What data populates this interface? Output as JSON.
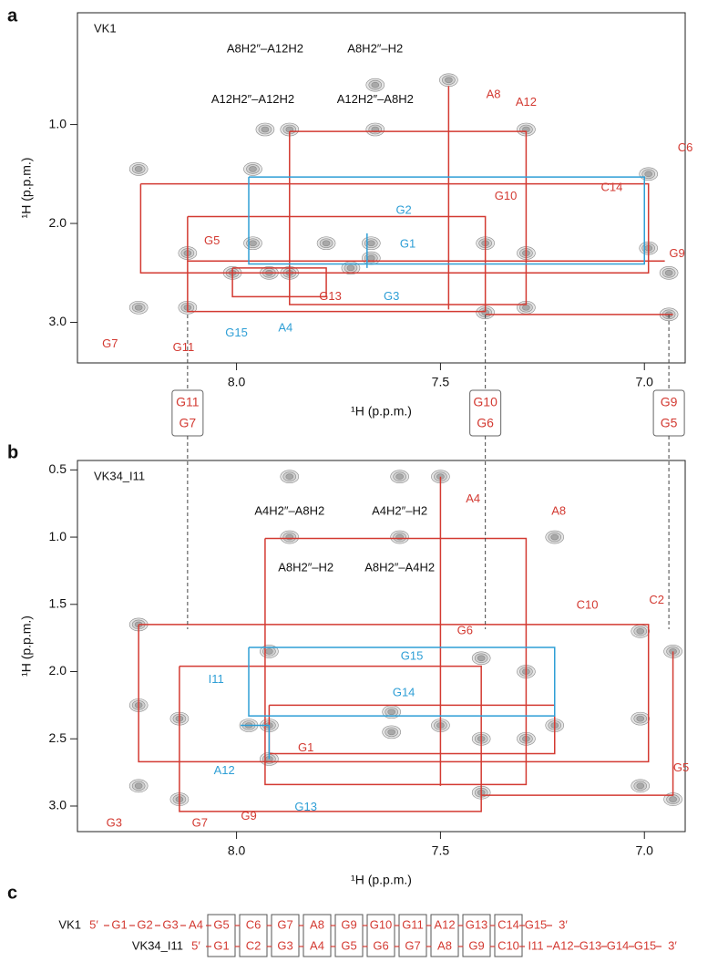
{
  "chart_data": [
    {
      "type": "contour",
      "panel": "a",
      "sample": "VK1",
      "xlabel": "¹H (p.p.m.)",
      "ylabel": "¹H (p.p.m.)",
      "xlim": [
        8.39,
        6.9
      ],
      "ylim": [
        -0.13,
        3.41
      ],
      "xticks": [
        {
          "value": 8,
          "label": "8.0"
        },
        7.5,
        {
          "value": 7,
          "label": "7.0"
        }
      ],
      "yticks": [
        {
          "value": 1,
          "label": "1.0"
        },
        {
          "value": 2,
          "label": "2.0"
        },
        {
          "value": 3,
          "label": "3.0"
        }
      ],
      "peaks": {
        "x": [
          8.24,
          8.24,
          8.12,
          8.12,
          8.01,
          7.96,
          7.96,
          7.92,
          7.87,
          7.87,
          7.78,
          7.72,
          7.67,
          7.67,
          7.48,
          7.39,
          7.39,
          7.29,
          7.29,
          7.29,
          6.99,
          6.99,
          6.94,
          6.94,
          7.66,
          7.66,
          7.93
        ],
        "y": [
          1.45,
          2.85,
          2.3,
          2.85,
          2.5,
          1.45,
          2.2,
          2.5,
          1.05,
          2.5,
          2.2,
          2.45,
          2.2,
          2.35,
          0.55,
          2.2,
          2.9,
          1.05,
          2.3,
          2.85,
          1.5,
          2.25,
          2.5,
          2.92,
          0.6,
          1.05,
          1.05
        ]
      },
      "lines": [
        {
          "color": "#d33a32",
          "x": [
            8.235,
            6.99,
            6.99,
            8.235,
            8.235
          ],
          "y": [
            1.6,
            1.6,
            2.5,
            2.5,
            1.6
          ]
        },
        {
          "color": "#d33a32",
          "x": [
            8.12,
            7.39,
            7.39,
            8.12,
            8.12
          ],
          "y": [
            1.93,
            1.93,
            2.89,
            2.89,
            1.93
          ]
        },
        {
          "color": "#d33a32",
          "x": [
            7.87,
            7.29,
            7.29,
            7.87,
            7.87
          ],
          "y": [
            1.07,
            1.07,
            2.82,
            2.82,
            1.07
          ]
        },
        {
          "color": "#d33a32",
          "x": [
            7.48,
            7.48
          ],
          "y": [
            0.61,
            2.87
          ]
        },
        {
          "color": "#d33a32",
          "x": [
            8.12,
            6.95
          ],
          "y": [
            2.38,
            2.38
          ]
        },
        {
          "color": "#d33a32",
          "x": [
            8.01,
            7.78,
            7.78,
            8.01,
            8.01
          ],
          "y": [
            2.45,
            2.45,
            2.74,
            2.74,
            2.45
          ]
        },
        {
          "color": "#d33a32",
          "x": [
            7.39,
            6.93
          ],
          "y": [
            2.92,
            2.92
          ]
        },
        {
          "color": "#2f9fd6",
          "x": [
            7.97,
            7.0,
            7.0,
            7.97,
            7.97
          ],
          "y": [
            1.53,
            1.53,
            2.41,
            2.41,
            1.53
          ]
        },
        {
          "color": "#2f9fd6",
          "x": [
            7.68,
            7.68
          ],
          "y": [
            2.1,
            2.45
          ]
        }
      ],
      "labels": [
        {
          "text": "A8H2″–A12H2",
          "color": "#111111",
          "x": 7.93,
          "y": 0.24
        },
        {
          "text": "A8H2″–H2",
          "color": "#111111",
          "x": 7.66,
          "y": 0.24
        },
        {
          "text": "A12H2″–A12H2",
          "color": "#111111",
          "x": 7.96,
          "y": 0.75
        },
        {
          "text": "A12H2″–A8H2",
          "color": "#111111",
          "x": 7.66,
          "y": 0.75
        },
        {
          "text": "A8",
          "color": "#d33a32",
          "x": 7.37,
          "y": 0.7
        },
        {
          "text": "A12",
          "color": "#d33a32",
          "x": 7.29,
          "y": 0.78
        },
        {
          "text": "C6",
          "color": "#d33a32",
          "x": 6.9,
          "y": 1.24
        },
        {
          "text": "C14",
          "color": "#d33a32",
          "x": 7.08,
          "y": 1.64
        },
        {
          "text": "G10",
          "color": "#d33a32",
          "x": 7.34,
          "y": 1.73
        },
        {
          "text": "G2",
          "color": "#2f9fd6",
          "x": 7.59,
          "y": 1.87
        },
        {
          "text": "G1",
          "color": "#2f9fd6",
          "x": 7.58,
          "y": 2.21
        },
        {
          "text": "G9",
          "color": "#d33a32",
          "x": 6.92,
          "y": 2.31
        },
        {
          "text": "G5",
          "color": "#d33a32",
          "x": 8.06,
          "y": 2.18
        },
        {
          "text": "G13",
          "color": "#d33a32",
          "x": 7.77,
          "y": 2.74
        },
        {
          "text": "G3",
          "color": "#2f9fd6",
          "x": 7.62,
          "y": 2.74
        },
        {
          "text": "G15",
          "color": "#2f9fd6",
          "x": 8.0,
          "y": 3.11
        },
        {
          "text": "A4",
          "color": "#2f9fd6",
          "x": 7.88,
          "y": 3.06
        },
        {
          "text": "G7",
          "color": "#d33a32",
          "x": 8.31,
          "y": 3.22
        },
        {
          "text": "G11",
          "color": "#d33a32",
          "x": 8.13,
          "y": 3.26
        }
      ]
    },
    {
      "type": "contour",
      "panel": "b",
      "sample": "VK34_I11",
      "xlabel": "¹H (p.p.m.)",
      "ylabel": "¹H (p.p.m.)",
      "xlim": [
        8.39,
        6.9
      ],
      "ylim": [
        0.43,
        3.19
      ],
      "xticks": [
        {
          "value": 8,
          "label": "8.0"
        },
        7.5,
        {
          "value": 7,
          "label": "7.0"
        }
      ],
      "yticks": [
        0.5,
        {
          "value": 1,
          "label": "1.0"
        },
        1.5,
        {
          "value": 2,
          "label": "2.0"
        },
        2.5,
        {
          "value": 3,
          "label": "3.0"
        }
      ],
      "peaks": {
        "x": [
          8.24,
          8.24,
          8.24,
          8.14,
          8.14,
          7.97,
          7.92,
          7.92,
          7.87,
          7.87,
          7.92,
          7.6,
          7.6,
          7.62,
          7.62,
          7.5,
          7.5,
          7.4,
          7.4,
          7.4,
          7.29,
          7.29,
          7.22,
          7.22,
          7.01,
          7.01,
          7.01,
          6.93,
          6.93
        ],
        "y": [
          1.65,
          2.25,
          2.85,
          2.35,
          2.95,
          2.4,
          2.4,
          2.65,
          0.55,
          1.0,
          1.85,
          0.55,
          1.0,
          2.3,
          2.45,
          0.55,
          2.4,
          1.9,
          2.5,
          2.9,
          2.0,
          2.5,
          1.0,
          2.4,
          1.7,
          2.35,
          2.85,
          2.95,
          1.85
        ]
      },
      "lines": [
        {
          "color": "#d33a32",
          "x": [
            8.24,
            6.99,
            6.99,
            8.24,
            8.24
          ],
          "y": [
            1.65,
            1.65,
            2.67,
            2.67,
            1.65
          ]
        },
        {
          "color": "#d33a32",
          "x": [
            8.14,
            7.4,
            7.4,
            8.14,
            8.14
          ],
          "y": [
            1.96,
            1.96,
            3.04,
            3.04,
            1.96
          ]
        },
        {
          "color": "#d33a32",
          "x": [
            7.93,
            7.29,
            7.29,
            7.93,
            7.93
          ],
          "y": [
            1.01,
            1.01,
            2.84,
            2.84,
            1.01
          ]
        },
        {
          "color": "#d33a32",
          "x": [
            7.5,
            7.5
          ],
          "y": [
            0.55,
            2.85
          ]
        },
        {
          "color": "#d33a32",
          "x": [
            7.4,
            6.93,
            6.93
          ],
          "y": [
            2.92,
            2.92,
            1.85
          ]
        },
        {
          "color": "#d33a32",
          "x": [
            7.92,
            7.22,
            7.22,
            7.92,
            7.92
          ],
          "y": [
            2.25,
            2.25,
            2.61,
            2.61,
            2.25
          ]
        },
        {
          "color": "#2f9fd6",
          "x": [
            7.97,
            7.22,
            7.22,
            7.97,
            7.97
          ],
          "y": [
            1.82,
            1.82,
            2.33,
            2.33,
            1.82
          ]
        },
        {
          "color": "#2f9fd6",
          "x": [
            7.99,
            7.92,
            7.92
          ],
          "y": [
            2.4,
            2.4,
            2.65
          ]
        }
      ],
      "labels": [
        {
          "text": "A4H2″–A8H2",
          "color": "#111111",
          "x": 7.87,
          "y": 0.81
        },
        {
          "text": "A4H2″–H2",
          "color": "#111111",
          "x": 7.6,
          "y": 0.81
        },
        {
          "text": "A8H2″–H2",
          "color": "#111111",
          "x": 7.83,
          "y": 1.23
        },
        {
          "text": "A8H2″–A4H2",
          "color": "#111111",
          "x": 7.6,
          "y": 1.23
        },
        {
          "text": "A4",
          "color": "#d33a32",
          "x": 7.42,
          "y": 0.72
        },
        {
          "text": "A8",
          "color": "#d33a32",
          "x": 7.21,
          "y": 0.81
        },
        {
          "text": "C10",
          "color": "#d33a32",
          "x": 7.14,
          "y": 1.51
        },
        {
          "text": "C2",
          "color": "#d33a32",
          "x": 6.97,
          "y": 1.47
        },
        {
          "text": "G6",
          "color": "#d33a32",
          "x": 7.44,
          "y": 1.7
        },
        {
          "text": "G15",
          "color": "#2f9fd6",
          "x": 7.57,
          "y": 1.89
        },
        {
          "text": "I11",
          "color": "#2f9fd6",
          "x": 8.05,
          "y": 2.06
        },
        {
          "text": "G14",
          "color": "#2f9fd6",
          "x": 7.59,
          "y": 2.16
        },
        {
          "text": "G1",
          "color": "#d33a32",
          "x": 7.83,
          "y": 2.57
        },
        {
          "text": "A12",
          "color": "#2f9fd6",
          "x": 8.03,
          "y": 2.74
        },
        {
          "text": "G13",
          "color": "#2f9fd6",
          "x": 7.83,
          "y": 3.01
        },
        {
          "text": "G9",
          "color": "#d33a32",
          "x": 7.97,
          "y": 3.08
        },
        {
          "text": "G5",
          "color": "#d33a32",
          "x": 6.91,
          "y": 2.72
        },
        {
          "text": "G3",
          "color": "#d33a32",
          "x": 8.3,
          "y": 3.13
        },
        {
          "text": "G7",
          "color": "#d33a32",
          "x": 8.09,
          "y": 3.13
        }
      ]
    }
  ],
  "linked_boxes": [
    {
      "top": "G11",
      "bottom": "G7",
      "x": 8.12
    },
    {
      "top": "G10",
      "bottom": "G6",
      "x": 7.39
    },
    {
      "top": "G9",
      "bottom": "G5",
      "x": 6.94
    }
  ],
  "sequence_panel": {
    "panel": "c",
    "rows": [
      {
        "name": "VK1",
        "residues": [
          "5′",
          "G1",
          "G2",
          "G3",
          "A4",
          "G5",
          "C6",
          "G7",
          "A8",
          "G9",
          "G10",
          "G11",
          "A12",
          "G13",
          "C14",
          "G15",
          "3′"
        ]
      },
      {
        "name": "VK34_I11",
        "residues": [
          "5′",
          "G1",
          "C2",
          "G3",
          "A4",
          "G5",
          "G6",
          "G7",
          "A8",
          "G9",
          "C10",
          "I11",
          "A12",
          "G13",
          "G14",
          "G15",
          "3′"
        ]
      }
    ]
  }
}
